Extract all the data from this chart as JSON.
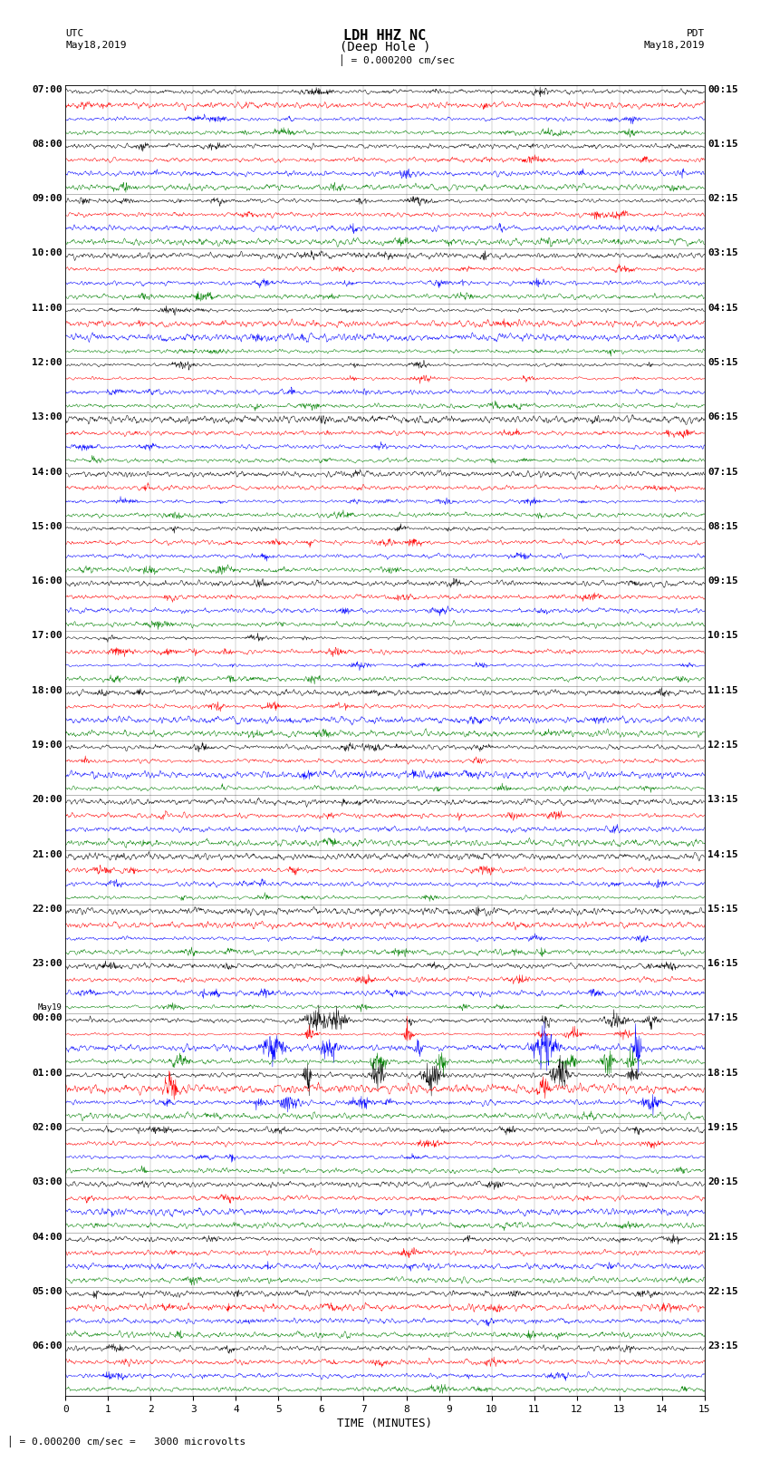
{
  "title_line1": "LDH HHZ NC",
  "title_line2": "(Deep Hole )",
  "scale_text": "= 0.000200 cm/sec",
  "left_label_header": "UTC",
  "left_date": "May18,2019",
  "right_label_header": "PDT",
  "right_date": "May18,2019",
  "xlabel": "TIME (MINUTES)",
  "bottom_note": "= 0.000200 cm/sec =   3000 microvolts",
  "xmin": 0,
  "xmax": 15,
  "trace_colors": [
    "black",
    "red",
    "blue",
    "green"
  ],
  "left_hour_labels": [
    "07:00",
    "08:00",
    "09:00",
    "10:00",
    "11:00",
    "12:00",
    "13:00",
    "14:00",
    "15:00",
    "16:00",
    "17:00",
    "18:00",
    "19:00",
    "20:00",
    "21:00",
    "22:00",
    "23:00",
    "00:00",
    "01:00",
    "02:00",
    "03:00",
    "04:00",
    "05:00",
    "06:00"
  ],
  "right_hour_labels": [
    "00:15",
    "01:15",
    "02:15",
    "03:15",
    "04:15",
    "05:15",
    "06:15",
    "07:15",
    "08:15",
    "09:15",
    "10:15",
    "11:15",
    "12:15",
    "13:15",
    "14:15",
    "15:15",
    "16:15",
    "17:15",
    "18:15",
    "19:15",
    "20:15",
    "21:15",
    "22:15",
    "23:15"
  ],
  "may19_row": 17,
  "background_color": "white",
  "fig_width": 8.5,
  "fig_height": 16.13,
  "traces_per_hour": 4,
  "num_hours": 23,
  "special_rows_factor": {
    "68": 3.0,
    "69": 3.5,
    "70": 5.0,
    "71": 3.0,
    "72": 4.0,
    "73": 3.5,
    "74": 2.5
  },
  "amp_scale": 0.38
}
